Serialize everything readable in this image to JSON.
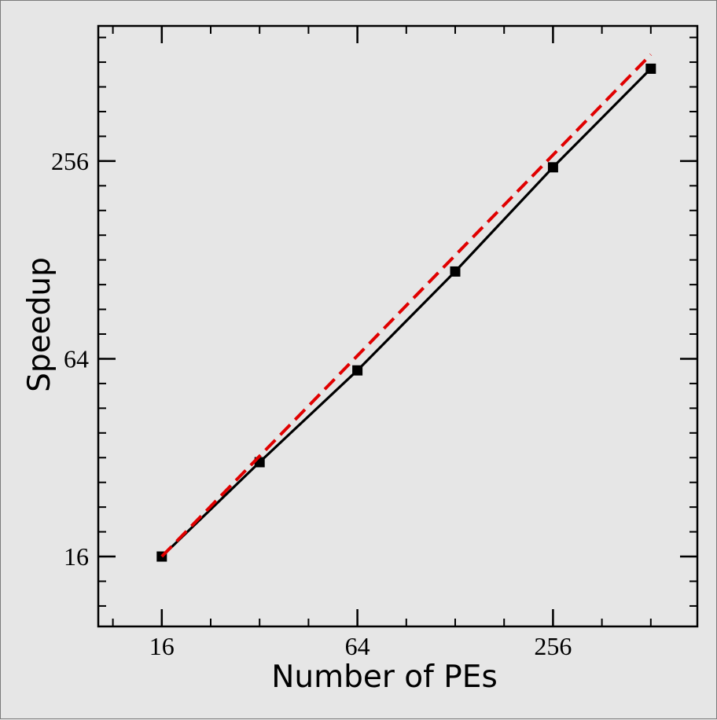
{
  "chart_data": {
    "type": "line",
    "title": "",
    "xlabel": "Number of PEs",
    "ylabel": "Speedup",
    "x_scale": "log2",
    "y_scale": "log2",
    "xlim": [
      10.2,
      712
    ],
    "ylim": [
      9.8,
      660
    ],
    "x_major_ticks": [
      16,
      64,
      256
    ],
    "y_major_ticks": [
      16,
      64,
      256
    ],
    "grid": false,
    "legend": "none",
    "series": [
      {
        "style": "solid",
        "color": "#000000",
        "marker": "square",
        "x": [
          16,
          32,
          64,
          128,
          256,
          512
        ],
        "y": [
          16,
          31,
          59,
          118,
          245,
          489
        ]
      },
      {
        "style": "dashed",
        "color": "#e00000",
        "marker": "none",
        "x": [
          16,
          512
        ],
        "y": [
          16,
          540
        ]
      }
    ]
  }
}
